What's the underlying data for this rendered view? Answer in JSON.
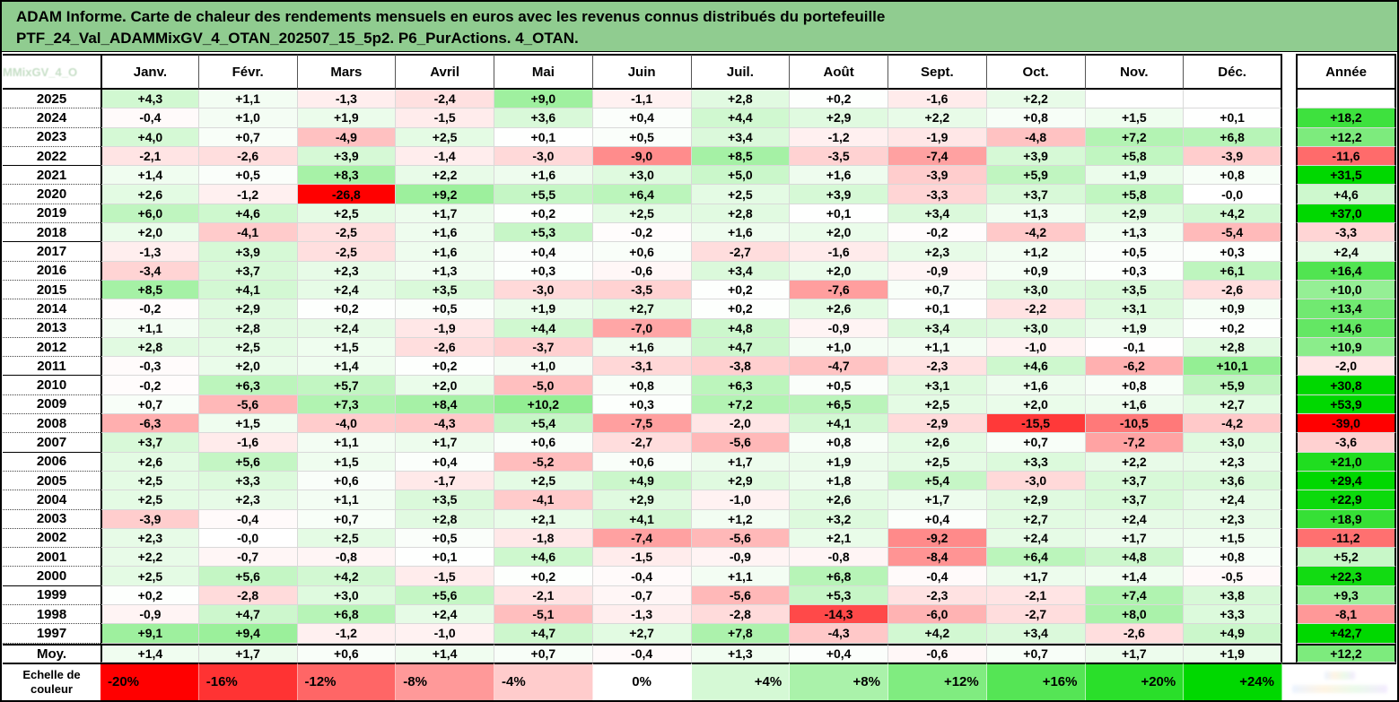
{
  "title": {
    "line1": "ADAM Informe. Carte de chaleur des rendements mensuels en euros avec les revenus connus distribués du portefeuille",
    "line2": "PTF_24_Val_ADAMMixGV_4_OTAN_202507_15_5p2. P6_PurActions. 4_OTAN."
  },
  "corner_watermark": "MMixGV_4_O",
  "colors": {
    "title_bg": "#90CC90",
    "positive_end": "#00D800",
    "negative_end": "#FF0000",
    "zero": "#FFFFFF"
  },
  "chart_data": {
    "type": "heatmap",
    "title": "ADAM Informe. Carte de chaleur des rendements mensuels en euros avec les revenus connus distribués du portefeuille PTF_24_Val_ADAMMixGV_4_OTAN_202507_15_5p2. P6_PurActions. 4_OTAN.",
    "columns": [
      "Janv.",
      "Févr.",
      "Mars",
      "Avril",
      "Mai",
      "Juin",
      "Juil.",
      "Août",
      "Sept.",
      "Oct.",
      "Nov.",
      "Déc."
    ],
    "annual_column": "Année",
    "rows": [
      {
        "year": "2025",
        "monthly": [
          "+4,3",
          "+1,1",
          "-1,3",
          "-2,4",
          "+9,0",
          "-1,1",
          "+2,8",
          "+0,2",
          "-1,6",
          "+2,2",
          "",
          ""
        ],
        "annual": ""
      },
      {
        "year": "2024",
        "monthly": [
          "-0,4",
          "+1,0",
          "+1,9",
          "-1,5",
          "+3,6",
          "+0,4",
          "+4,4",
          "+2,9",
          "+2,2",
          "+0,8",
          "+1,5",
          "+0,1"
        ],
        "annual": "+18,2"
      },
      {
        "year": "2023",
        "monthly": [
          "+4,0",
          "+0,7",
          "-4,9",
          "+2,5",
          "+0,1",
          "+0,5",
          "+3,4",
          "-1,2",
          "-1,9",
          "-4,8",
          "+7,2",
          "+6,8"
        ],
        "annual": "+12,2"
      },
      {
        "year": "2022",
        "monthly": [
          "-2,1",
          "-2,6",
          "+3,9",
          "-1,4",
          "-3,0",
          "-9,0",
          "+8,5",
          "-3,5",
          "-7,4",
          "+3,9",
          "+5,8",
          "-3,9"
        ],
        "annual": "-11,6"
      },
      {
        "year": "2021",
        "monthly": [
          "+1,4",
          "+0,5",
          "+8,3",
          "+2,2",
          "+1,6",
          "+3,0",
          "+5,0",
          "+1,6",
          "-3,9",
          "+5,9",
          "+1,9",
          "+0,8"
        ],
        "annual": "+31,5"
      },
      {
        "year": "2020",
        "monthly": [
          "+2,6",
          "-1,2",
          "-26,8",
          "+9,2",
          "+5,5",
          "+6,4",
          "+2,5",
          "+3,9",
          "-3,3",
          "+3,7",
          "+5,8",
          "-0,0"
        ],
        "annual": "+4,6"
      },
      {
        "year": "2019",
        "monthly": [
          "+6,0",
          "+4,6",
          "+2,5",
          "+1,7",
          "+0,2",
          "+2,5",
          "+2,8",
          "+0,1",
          "+3,4",
          "+1,3",
          "+2,9",
          "+4,2"
        ],
        "annual": "+37,0"
      },
      {
        "year": "2018",
        "monthly": [
          "+2,0",
          "-4,1",
          "-2,5",
          "+1,6",
          "+5,3",
          "-0,2",
          "+1,6",
          "+2,0",
          "-0,2",
          "-4,2",
          "+1,3",
          "-5,4"
        ],
        "annual": "-3,3"
      },
      {
        "year": "2017",
        "monthly": [
          "-1,3",
          "+3,9",
          "-2,5",
          "+1,6",
          "+0,4",
          "+0,6",
          "-2,7",
          "-1,6",
          "+2,3",
          "+1,2",
          "+0,5",
          "+0,3"
        ],
        "annual": "+2,4"
      },
      {
        "year": "2016",
        "monthly": [
          "-3,4",
          "+3,7",
          "+2,3",
          "+1,3",
          "+0,3",
          "-0,6",
          "+3,4",
          "+2,0",
          "-0,9",
          "+0,9",
          "+0,3",
          "+6,1"
        ],
        "annual": "+16,4"
      },
      {
        "year": "2015",
        "monthly": [
          "+8,5",
          "+4,1",
          "+2,4",
          "+3,5",
          "-3,0",
          "-3,5",
          "+0,2",
          "-7,6",
          "+0,7",
          "+3,0",
          "+3,5",
          "-2,6"
        ],
        "annual": "+10,0"
      },
      {
        "year": "2014",
        "monthly": [
          "-0,2",
          "+2,9",
          "+0,2",
          "+0,5",
          "+1,9",
          "+2,7",
          "+0,2",
          "+2,6",
          "+0,1",
          "-2,2",
          "+3,1",
          "+0,9"
        ],
        "annual": "+13,4"
      },
      {
        "year": "2013",
        "monthly": [
          "+1,1",
          "+2,8",
          "+2,4",
          "-1,9",
          "+4,4",
          "-7,0",
          "+4,8",
          "-0,9",
          "+3,4",
          "+3,0",
          "+1,9",
          "+0,2"
        ],
        "annual": "+14,6"
      },
      {
        "year": "2012",
        "monthly": [
          "+2,8",
          "+2,5",
          "+1,5",
          "-2,6",
          "-3,7",
          "+1,6",
          "+4,7",
          "+1,0",
          "+1,1",
          "-1,0",
          "-0,1",
          "+2,8"
        ],
        "annual": "+10,9"
      },
      {
        "year": "2011",
        "monthly": [
          "-0,3",
          "+2,0",
          "+1,4",
          "+0,2",
          "+1,0",
          "-3,1",
          "-3,8",
          "-4,7",
          "-2,3",
          "+4,6",
          "-6,2",
          "+10,1"
        ],
        "annual": "-2,0"
      },
      {
        "year": "2010",
        "monthly": [
          "-0,2",
          "+6,3",
          "+5,7",
          "+2,0",
          "-5,0",
          "+0,8",
          "+6,3",
          "+0,5",
          "+3,1",
          "+1,6",
          "+0,8",
          "+5,9"
        ],
        "annual": "+30,8"
      },
      {
        "year": "2009",
        "monthly": [
          "+0,7",
          "-5,6",
          "+7,3",
          "+8,4",
          "+10,2",
          "+0,3",
          "+7,2",
          "+6,5",
          "+2,5",
          "+2,0",
          "+1,6",
          "+2,7"
        ],
        "annual": "+53,9"
      },
      {
        "year": "2008",
        "monthly": [
          "-6,3",
          "+1,5",
          "-4,0",
          "-4,3",
          "+5,4",
          "-7,5",
          "-2,0",
          "+4,1",
          "-2,9",
          "-15,5",
          "-10,5",
          "-4,2"
        ],
        "annual": "-39,0"
      },
      {
        "year": "2007",
        "monthly": [
          "+3,7",
          "-1,6",
          "+1,1",
          "+1,7",
          "+0,6",
          "-2,7",
          "-5,6",
          "+0,8",
          "+2,6",
          "+0,7",
          "-7,2",
          "+3,0"
        ],
        "annual": "-3,6"
      },
      {
        "year": "2006",
        "monthly": [
          "+2,6",
          "+5,6",
          "+1,5",
          "+0,4",
          "-5,2",
          "+0,6",
          "+1,7",
          "+1,9",
          "+2,5",
          "+3,3",
          "+2,2",
          "+2,3"
        ],
        "annual": "+21,0"
      },
      {
        "year": "2005",
        "monthly": [
          "+2,5",
          "+3,3",
          "+0,6",
          "-1,7",
          "+2,5",
          "+4,9",
          "+2,9",
          "+1,8",
          "+5,4",
          "-3,0",
          "+3,7",
          "+3,6"
        ],
        "annual": "+29,4"
      },
      {
        "year": "2004",
        "monthly": [
          "+2,5",
          "+2,3",
          "+1,1",
          "+3,5",
          "-4,1",
          "+2,9",
          "-1,0",
          "+2,6",
          "+1,7",
          "+2,9",
          "+3,7",
          "+2,4"
        ],
        "annual": "+22,9"
      },
      {
        "year": "2003",
        "monthly": [
          "-3,9",
          "-0,4",
          "+0,7",
          "+2,8",
          "+2,1",
          "+4,1",
          "+1,2",
          "+3,2",
          "+0,4",
          "+2,7",
          "+2,4",
          "+2,3"
        ],
        "annual": "+18,9"
      },
      {
        "year": "2002",
        "monthly": [
          "+2,3",
          "-0,0",
          "+2,5",
          "+0,5",
          "-1,8",
          "-7,4",
          "-5,6",
          "+2,1",
          "-9,2",
          "+2,4",
          "+1,7",
          "+1,5"
        ],
        "annual": "-11,2"
      },
      {
        "year": "2001",
        "monthly": [
          "+2,2",
          "-0,7",
          "-0,8",
          "+0,1",
          "+4,6",
          "-1,5",
          "-0,9",
          "-0,8",
          "-8,4",
          "+6,4",
          "+4,8",
          "+0,8"
        ],
        "annual": "+5,2"
      },
      {
        "year": "2000",
        "monthly": [
          "+2,5",
          "+5,6",
          "+4,2",
          "-1,5",
          "+0,2",
          "-0,4",
          "+1,1",
          "+6,8",
          "-0,4",
          "+1,7",
          "+1,4",
          "-0,5"
        ],
        "annual": "+22,3"
      },
      {
        "year": "1999",
        "monthly": [
          "+0,2",
          "-2,8",
          "+3,0",
          "+5,6",
          "-2,1",
          "-0,7",
          "-5,6",
          "+5,3",
          "-2,3",
          "-2,1",
          "+7,4",
          "+3,8"
        ],
        "annual": "+9,3"
      },
      {
        "year": "1998",
        "monthly": [
          "-0,9",
          "+4,7",
          "+6,8",
          "+2,4",
          "-5,1",
          "-1,3",
          "-2,8",
          "-14,3",
          "-6,0",
          "-2,7",
          "+8,0",
          "+3,3"
        ],
        "annual": "-8,1"
      },
      {
        "year": "1997",
        "monthly": [
          "+9,1",
          "+9,4",
          "-1,2",
          "-1,0",
          "+4,7",
          "+2,7",
          "+7,8",
          "-4,3",
          "+4,2",
          "+3,4",
          "-2,6",
          "+4,9"
        ],
        "annual": "+42,7"
      },
      {
        "year": "Moy.",
        "monthly": [
          "+1,4",
          "+1,7",
          "+0,6",
          "+1,4",
          "+0,7",
          "-0,4",
          "+1,3",
          "+0,4",
          "-0,6",
          "+0,7",
          "+1,7",
          "+1,9"
        ],
        "annual": "+12,2"
      }
    ],
    "color_scale": {
      "label_line1": "Echelle de",
      "label_line2": "couleur",
      "stops": [
        {
          "label": "-20%",
          "value": -20
        },
        {
          "label": "-16%",
          "value": -16
        },
        {
          "label": "-12%",
          "value": -12
        },
        {
          "label": "-8%",
          "value": -8
        },
        {
          "label": "-4%",
          "value": -4
        },
        {
          "label": "0%",
          "value": 0
        },
        {
          "label": "+4%",
          "value": 4
        },
        {
          "label": "+8%",
          "value": 8
        },
        {
          "label": "+12%",
          "value": 12
        },
        {
          "label": "+16%",
          "value": 16
        },
        {
          "label": "+20%",
          "value": 20
        },
        {
          "label": "+24%",
          "value": 24
        }
      ],
      "negative_domain": [
        0,
        -20
      ],
      "positive_domain": [
        0,
        24
      ],
      "legend_position": "bottom"
    }
  }
}
